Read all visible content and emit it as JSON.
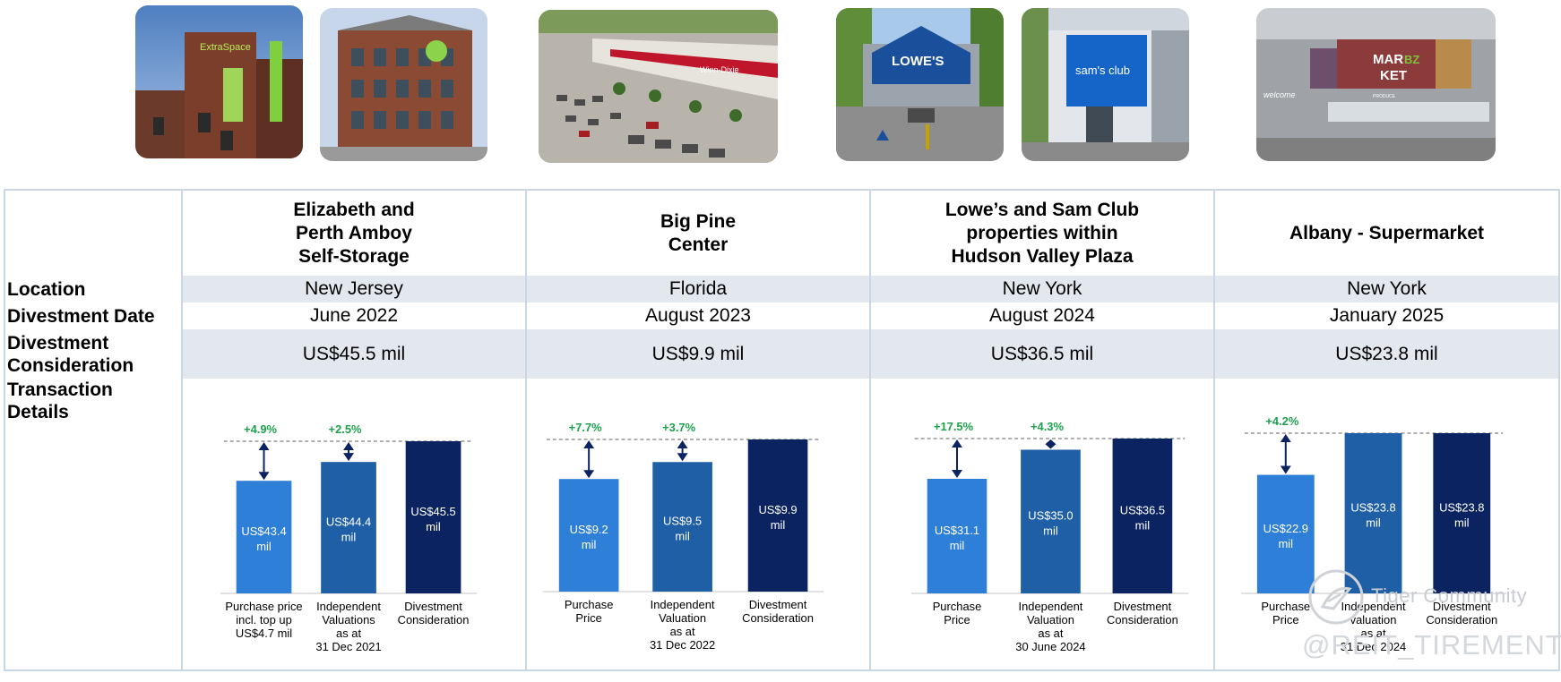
{
  "properties": [
    {
      "name_lines": [
        "Elizabeth and",
        "Perth Amboy",
        "Self-Storage"
      ],
      "location": "New Jersey",
      "divestment_date": "June 2022",
      "consideration": "US$45.5 mil"
    },
    {
      "name_lines": [
        "Big Pine",
        "Center"
      ],
      "location": "Florida",
      "divestment_date": "August 2023",
      "consideration": "US$9.9 mil"
    },
    {
      "name_lines": [
        "Lowe’s and Sam Club",
        "properties within",
        "Hudson Valley Plaza"
      ],
      "location": "New York",
      "divestment_date": "August 2024",
      "consideration": "US$36.5 mil"
    },
    {
      "name_lines": [
        "Albany - Supermarket"
      ],
      "location": "New York",
      "divestment_date": "January 2025",
      "consideration": "US$23.8 mil"
    }
  ],
  "row_labels": {
    "location": "Location",
    "divestment_date": "Divestment Date",
    "consideration_lines": [
      "Divestment",
      "Consideration"
    ],
    "transaction_lines": [
      "Transaction",
      "Details"
    ]
  },
  "photo_signs": {
    "extra_space": "ExtraSpace",
    "winn_dixie": "Winn-Dixie",
    "lowes": "LOWE'S",
    "sams_club": "sam's club",
    "market_line1": "MAR",
    "market_bz": "BZ",
    "market_line2": "KET",
    "welcome": "welcome",
    "produce": "PRODUCE"
  },
  "colors": {
    "purchase": "#2e7fd8",
    "valuation": "#1f5fa6",
    "divestment": "#0b2461",
    "percent": "#1ca24a",
    "arrow": "#0b2461"
  },
  "chart_data": [
    {
      "type": "bar",
      "categories": [
        [
          "Purchase price",
          "incl. top up",
          "US$4.7 mil"
        ],
        [
          "Independent",
          "Valuations",
          "as at",
          "31 Dec 2021"
        ],
        [
          "Divestment",
          "Consideration"
        ]
      ],
      "values": [
        43.4,
        44.4,
        45.5
      ],
      "value_labels": [
        [
          "US$43.4",
          "mil"
        ],
        [
          "US$44.4",
          "mil"
        ],
        [
          "US$45.5",
          "mil"
        ]
      ],
      "uplift_labels": [
        "+4.9%",
        "+2.5%"
      ]
    },
    {
      "type": "bar",
      "categories": [
        [
          "Purchase",
          "Price"
        ],
        [
          "Independent",
          "Valuation",
          "as at",
          "31 Dec 2022"
        ],
        [
          "Divestment",
          "Consideration"
        ]
      ],
      "values": [
        9.2,
        9.5,
        9.9
      ],
      "value_labels": [
        [
          "US$9.2",
          "mil"
        ],
        [
          "US$9.5",
          "mil"
        ],
        [
          "US$9.9",
          "mil"
        ]
      ],
      "uplift_labels": [
        "+7.7%",
        "+3.7%"
      ]
    },
    {
      "type": "bar",
      "categories": [
        [
          "Purchase",
          "Price"
        ],
        [
          "Independent",
          "Valuation",
          "as at",
          "30 June 2024"
        ],
        [
          "Divestment",
          "Consideration"
        ]
      ],
      "values": [
        31.1,
        35.0,
        36.5
      ],
      "value_labels": [
        [
          "US$31.1",
          "mil"
        ],
        [
          "US$35.0",
          "mil"
        ],
        [
          "US$36.5",
          "mil"
        ]
      ],
      "uplift_labels": [
        "+17.5%",
        "+4.3%"
      ]
    },
    {
      "type": "bar",
      "categories": [
        [
          "Purchase",
          "Price"
        ],
        [
          "Independent",
          "valuation",
          "as at",
          "31 Dec 2024"
        ],
        [
          "Divestment",
          "Consideration"
        ]
      ],
      "values": [
        22.9,
        23.8,
        23.8
      ],
      "value_labels": [
        [
          "US$22.9",
          "mil"
        ],
        [
          "US$23.8",
          "mil"
        ],
        [
          "US$23.8",
          "mil"
        ]
      ],
      "uplift_labels": [
        "+4.2%",
        ""
      ]
    }
  ],
  "watermark": {
    "line1": "Tiger Community",
    "line2": "@REIT_TIREMENT"
  }
}
